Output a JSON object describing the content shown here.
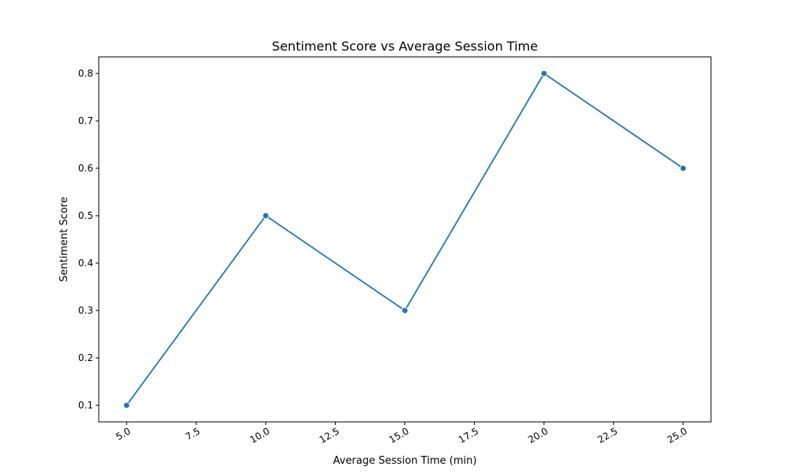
{
  "chart_data": {
    "type": "line",
    "title": "Sentiment Score vs Average Session Time",
    "xlabel": "Average Session Time (min)",
    "ylabel": "Sentiment Score",
    "x": [
      5,
      10,
      15,
      20,
      25
    ],
    "series": [
      {
        "values": [
          0.1,
          0.5,
          0.3,
          0.8,
          0.6
        ]
      }
    ],
    "xlim": [
      4.0,
      26.0
    ],
    "ylim": [
      0.065,
      0.835
    ],
    "xticks": [
      5.0,
      7.5,
      10.0,
      12.5,
      15.0,
      17.5,
      20.0,
      22.5,
      25.0
    ],
    "xtick_labels": [
      "5.0",
      "7.5",
      "10.0",
      "12.5",
      "15.0",
      "17.5",
      "20.0",
      "22.5",
      "25.0"
    ],
    "yticks": [
      0.1,
      0.2,
      0.3,
      0.4,
      0.5,
      0.6,
      0.7,
      0.8
    ],
    "ytick_labels": [
      "0.1",
      "0.2",
      "0.3",
      "0.4",
      "0.5",
      "0.6",
      "0.7",
      "0.8"
    ],
    "grid": false,
    "markers": true,
    "colors": {
      "line": "#1f77b4",
      "axes": "#000000",
      "background": "#ffffff"
    }
  }
}
